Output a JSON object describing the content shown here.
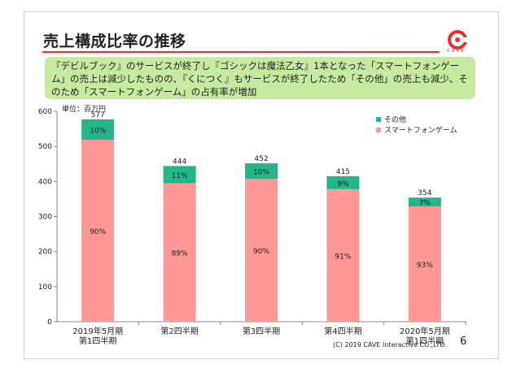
{
  "slide": {
    "title": "売上構成比率の推移",
    "note": "『デビルブック』のサービスが終了し『ゴシックは魔法乙女』1本となった「スマートフォンゲーム」の売上は減少したものの、『くにつく』もサービスが終了したため「その他」の売上も減少、そのため「スマートフォンゲーム」の占有率が増加",
    "logo_text": "cave",
    "footer": "(C) 2019 CAVE Interactive CO.,LTD.",
    "page_number": "6",
    "colors": {
      "accent": "#e9302e",
      "note_bg": "#c5eaa0"
    }
  },
  "chart_data": {
    "type": "bar",
    "stacked": true,
    "unit_label": "単位：百万円",
    "categories": [
      [
        "2019年5月期",
        "第1四半期"
      ],
      [
        "第2四半期"
      ],
      [
        "第3四半期"
      ],
      [
        "第4四半期"
      ],
      [
        "2020年5月期",
        "第1四半期"
      ]
    ],
    "totals": [
      577,
      444,
      452,
      415,
      354
    ],
    "series": [
      {
        "name": "スマートフォンゲーム",
        "color": "#ff9796",
        "values": [
          519,
          395,
          407,
          378,
          329
        ],
        "labels": [
          "90%",
          "89%",
          "90%",
          "91%",
          "93%"
        ]
      },
      {
        "name": "その他",
        "color": "#25b58a",
        "values": [
          58,
          49,
          45,
          37,
          25
        ],
        "labels": [
          "10%",
          "11%",
          "10%",
          "9%",
          "7%"
        ]
      }
    ],
    "ylim": [
      0,
      600
    ],
    "yticks": [
      0,
      100,
      200,
      300,
      400,
      500,
      600
    ],
    "legend_order": [
      "その他",
      "スマートフォンゲーム"
    ],
    "legend_position": "top-right"
  }
}
